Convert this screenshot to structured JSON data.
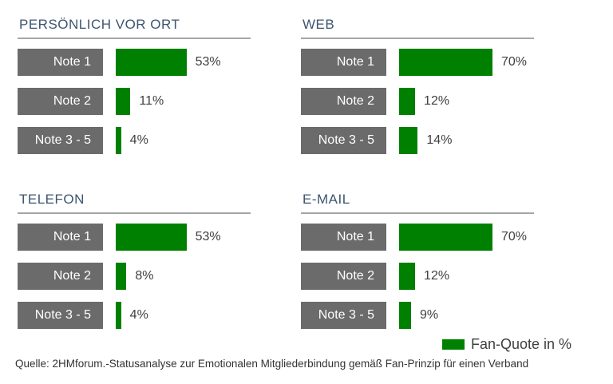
{
  "chart_data": [
    {
      "type": "bar",
      "title": "PERSÖNLICH VOR ORT",
      "categories": [
        "Note 1",
        "Note 2",
        "Note 3 - 5"
      ],
      "values": [
        53,
        11,
        4
      ],
      "value_labels": [
        "53%",
        "11%",
        "4%"
      ],
      "unit": "%",
      "orientation": "horizontal",
      "color": "#008000"
    },
    {
      "type": "bar",
      "title": "WEB",
      "categories": [
        "Note 1",
        "Note 2",
        "Note 3 - 5"
      ],
      "values": [
        70,
        12,
        14
      ],
      "value_labels": [
        "70%",
        "12%",
        "14%"
      ],
      "unit": "%",
      "orientation": "horizontal",
      "color": "#008000"
    },
    {
      "type": "bar",
      "title": "TELEFON",
      "categories": [
        "Note 1",
        "Note 2",
        "Note 3 - 5"
      ],
      "values": [
        53,
        8,
        4
      ],
      "value_labels": [
        "53%",
        "8%",
        "4%"
      ],
      "unit": "%",
      "orientation": "horizontal",
      "color": "#008000"
    },
    {
      "type": "bar",
      "title": "E-MAIL",
      "categories": [
        "Note 1",
        "Note 2",
        "Note 3 - 5"
      ],
      "values": [
        70,
        12,
        9
      ],
      "value_labels": [
        "70%",
        "12%",
        "9%"
      ],
      "unit": "%",
      "orientation": "horizontal",
      "color": "#008000"
    }
  ],
  "legend": {
    "label": "Fan-Quote in %",
    "color": "#008000"
  },
  "source": "Quelle: 2HMforum.-Statusanalyse zur Emotionalen Mitgliederbindung gemäß Fan-Prinzip für einen Verband"
}
